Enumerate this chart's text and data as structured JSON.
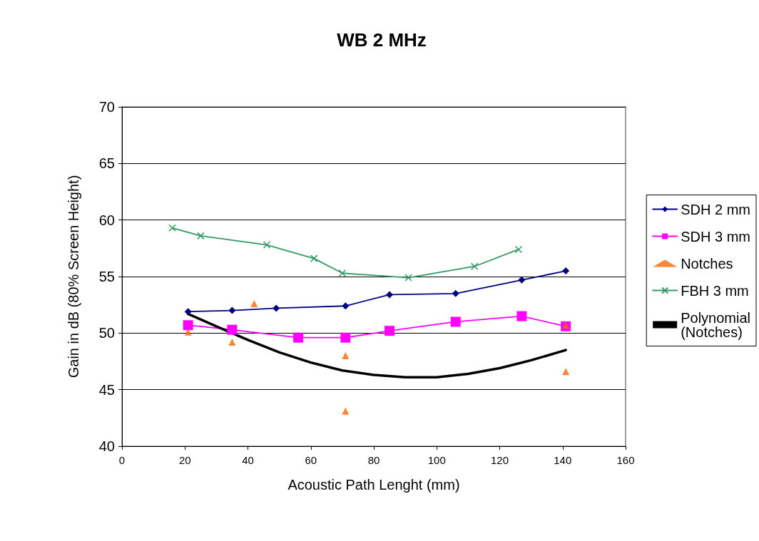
{
  "chart_data": {
    "type": "line",
    "title": "WB 2 MHz",
    "xlabel": "Acoustic Path Lenght (mm)",
    "ylabel": "Gain in dB (80% Screen Height)",
    "xlim": [
      0,
      160
    ],
    "xticks": [
      0,
      20,
      40,
      60,
      80,
      100,
      120,
      140,
      160
    ],
    "ylim": [
      40,
      70
    ],
    "yticks": [
      40,
      45,
      50,
      55,
      60,
      65,
      70
    ],
    "grid": "y",
    "legend": "right",
    "series": [
      {
        "name": "SDH 2 mm",
        "color": "#000080",
        "marker": "diamond",
        "x": [
          21,
          35,
          49,
          71,
          85,
          106,
          127,
          141
        ],
        "values": [
          51.9,
          52.0,
          52.2,
          52.4,
          53.4,
          53.5,
          54.7,
          55.5
        ]
      },
      {
        "name": "SDH 3 mm",
        "color": "#ff00ff",
        "marker": "square",
        "x": [
          21,
          35,
          56,
          71,
          85,
          106,
          127,
          141
        ],
        "values": [
          50.7,
          50.3,
          49.6,
          49.6,
          50.2,
          51.0,
          51.5,
          50.6
        ]
      },
      {
        "name": "Notches",
        "type": "scatter",
        "color": "#ff6600",
        "marker": "triangle",
        "x": [
          21,
          35,
          42,
          71,
          71,
          141,
          141
        ],
        "values": [
          50.1,
          49.2,
          52.6,
          48.0,
          43.1,
          50.7,
          46.6
        ]
      },
      {
        "name": "FBH 3 mm",
        "color": "#339966",
        "marker": "cross",
        "x": [
          16,
          25,
          46,
          61,
          70,
          91,
          112,
          126
        ],
        "values": [
          59.3,
          58.6,
          57.8,
          56.6,
          55.3,
          54.9,
          55.9,
          57.4
        ]
      },
      {
        "name": "Polynomial\n(Notches)",
        "color": "#000000",
        "marker": "none",
        "x": [
          21,
          30,
          40,
          50,
          60,
          70,
          80,
          90,
          100,
          110,
          120,
          130,
          141
        ],
        "values": [
          51.7,
          50.6,
          49.4,
          48.3,
          47.4,
          46.7,
          46.3,
          46.1,
          46.1,
          46.4,
          46.9,
          47.6,
          48.5
        ]
      }
    ]
  }
}
